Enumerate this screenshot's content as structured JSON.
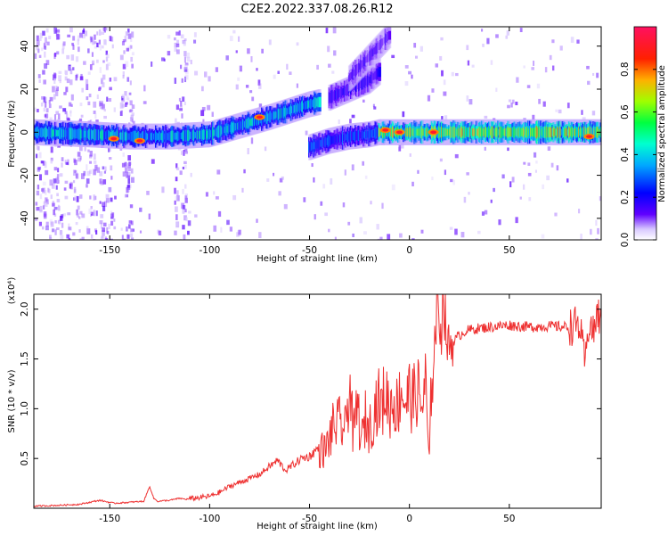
{
  "title": "C2E2.2022.337.08.26.R12",
  "chart_data": [
    {
      "type": "heatmap",
      "xlabel": "Height of straight line (km)",
      "ylabel": "Frequency (Hz)",
      "xlim": [
        -188,
        96
      ],
      "ylim": [
        -50,
        49
      ],
      "xticks": [
        -150,
        -100,
        -50,
        0,
        50
      ],
      "yticks": [
        -40,
        -20,
        0,
        20,
        40
      ],
      "grid": false,
      "colorbar": {
        "label": "Normalized spectral amplitude",
        "range": [
          0,
          1
        ],
        "ticks": [
          0.0,
          0.2,
          0.4,
          0.6,
          0.8
        ],
        "tick_labels": [
          "0.0",
          "0.2",
          "0.4",
          "0.6",
          "0.8"
        ],
        "colormap": [
          "#ffffff",
          "#6000ff",
          "#0000ff",
          "#00e0ff",
          "#00ff60",
          "#a0ff00",
          "#ffa000",
          "#ff0000",
          "#ff1060"
        ]
      },
      "ridges": [
        {
          "x": [
            -188,
            -160,
            -140,
            -120,
            -100,
            -85,
            -70,
            -60,
            -50,
            -45
          ],
          "y": [
            0,
            -1,
            -2,
            -2,
            -1,
            3,
            7,
            10,
            13,
            14
          ],
          "amplitude": 0.45
        },
        {
          "x": [
            -50,
            -40,
            -30,
            -20,
            -15
          ],
          "y": [
            -7,
            -4,
            -2,
            -1,
            0
          ],
          "amplitude": 0.3
        },
        {
          "x": [
            -15,
            -5,
            0,
            10,
            20,
            50,
            80,
            96
          ],
          "y": [
            0,
            0,
            0,
            0,
            0,
            0,
            0,
            0
          ],
          "amplitude": 0.7
        },
        {
          "x": [
            -40,
            -30,
            -20,
            -15
          ],
          "y": [
            16,
            20,
            24,
            28
          ],
          "amplitude": 0.2
        },
        {
          "x": [
            -30,
            -20,
            -10
          ],
          "y": [
            25,
            35,
            45
          ],
          "amplitude": 0.15
        }
      ],
      "hotspots": [
        {
          "x": -148,
          "y": -3
        },
        {
          "x": -135,
          "y": -4
        },
        {
          "x": -75,
          "y": 7
        },
        {
          "x": -12,
          "y": 1
        },
        {
          "x": -5,
          "y": 0
        },
        {
          "x": 12,
          "y": 0
        },
        {
          "x": 90,
          "y": -2
        }
      ]
    },
    {
      "type": "line",
      "xlabel": "Height of straight line (km)",
      "ylabel": "SNR (10 * v/v)",
      "y_multiplier": "(x10⁴)",
      "xlim": [
        -188,
        96
      ],
      "ylim": [
        0,
        2.15
      ],
      "xticks": [
        -150,
        -100,
        -50,
        0,
        50
      ],
      "yticks": [
        0.5,
        1.0,
        1.5,
        2.0
      ],
      "ytick_labels": [
        "0.5",
        "1.0",
        "1.5",
        "2.0"
      ],
      "grid": false,
      "series": [
        {
          "color": "#ee3030",
          "x": [
            -188,
            -175,
            -165,
            -155,
            -148,
            -140,
            -133,
            -130,
            -128,
            -126,
            -120,
            -115,
            -112,
            -108,
            -100,
            -95,
            -90,
            -85,
            -80,
            -75,
            -70,
            -66,
            -62,
            -58,
            -54,
            -50,
            -46,
            -42,
            -38,
            -35,
            -32,
            -30,
            -28,
            -26,
            -24,
            -22,
            -20,
            -18,
            -16,
            -14,
            -12,
            -10,
            -8,
            -6,
            -4,
            -2,
            0,
            2,
            4,
            6,
            8,
            10,
            11,
            12,
            14,
            16,
            17,
            19,
            21,
            24,
            28,
            32,
            40,
            50,
            60,
            70,
            80,
            85,
            88,
            90,
            92,
            94,
            96
          ],
          "y": [
            0.02,
            0.03,
            0.04,
            0.08,
            0.05,
            0.06,
            0.07,
            0.22,
            0.1,
            0.07,
            0.08,
            0.1,
            0.09,
            0.1,
            0.12,
            0.16,
            0.22,
            0.26,
            0.3,
            0.34,
            0.42,
            0.48,
            0.38,
            0.44,
            0.5,
            0.52,
            0.6,
            0.58,
            0.82,
            0.85,
            0.78,
            1.28,
            0.7,
            1.05,
            0.65,
            0.9,
            0.8,
            0.95,
            1.1,
            1.0,
            1.18,
            1.0,
            1.1,
            1.0,
            1.22,
            1.05,
            1.15,
            1.08,
            1.2,
            1.0,
            1.25,
            0.4,
            1.3,
            1.5,
            2.05,
            1.8,
            2.15,
            1.62,
            1.65,
            1.72,
            1.78,
            1.8,
            1.82,
            1.84,
            1.82,
            1.83,
            1.82,
            1.85,
            1.45,
            1.9,
            1.75,
            1.95,
            1.9
          ]
        }
      ]
    }
  ]
}
